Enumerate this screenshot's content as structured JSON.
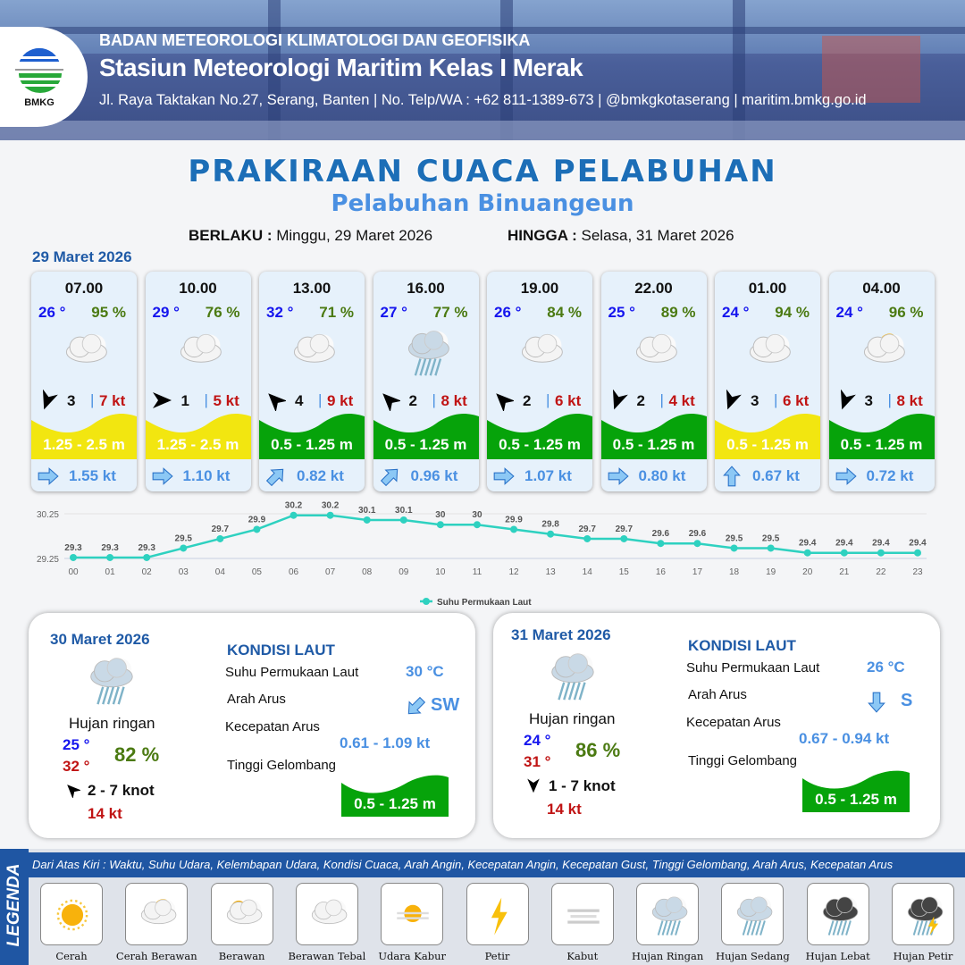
{
  "header": {
    "org": "BADAN METEOROLOGI KLIMATOLOGI DAN GEOFISIKA",
    "station": "Stasiun Meteorologi Maritim Kelas I Merak",
    "contact": "Jl. Raya Taktakan No.27, Serang, Banten | No. Telp/WA : +62 811-1389-673 | @bmkgkotaserang | maritim.bmkg.go.id",
    "logo_text": "BMKG"
  },
  "title": "PRAKIRAAN CUACA PELABUHAN",
  "subtitle": "Pelabuhan Binuangeun",
  "validity": {
    "from_label": "BERLAKU :",
    "from": "Minggu, 29 Maret 2026",
    "to_label": "HINGGA :",
    "to": "Selasa, 31 Maret 2026"
  },
  "day1": {
    "date": "29 Maret 2026",
    "slots": [
      {
        "time": "07.00",
        "temp": "26 °",
        "rh": "95 %",
        "icon": "berawan-tebal",
        "wind_dir_deg": 200,
        "wind": "3",
        "gust": "7 kt",
        "wave": "1.25 - 2.5 m",
        "wave_color": "#f2e610",
        "cur_dir_deg": 90,
        "current": "1.55 kt"
      },
      {
        "time": "10.00",
        "temp": "29 °",
        "rh": "76 %",
        "icon": "berawan-tebal",
        "wind_dir_deg": 90,
        "wind": "1",
        "gust": "5 kt",
        "wave": "1.25 - 2.5 m",
        "wave_color": "#f2e610",
        "cur_dir_deg": 90,
        "current": "1.10 kt"
      },
      {
        "time": "13.00",
        "temp": "32 °",
        "rh": "71 %",
        "icon": "berawan-tebal",
        "wind_dir_deg": 315,
        "wind": "4",
        "gust": "9 kt",
        "wave": "0.5 - 1.25 m",
        "wave_color": "#06a30a",
        "cur_dir_deg": 45,
        "current": "0.82 kt"
      },
      {
        "time": "16.00",
        "temp": "27 °",
        "rh": "77 %",
        "icon": "hujan-ringan",
        "wind_dir_deg": 315,
        "wind": "2",
        "gust": "8 kt",
        "wave": "0.5 - 1.25 m",
        "wave_color": "#06a30a",
        "cur_dir_deg": 45,
        "current": "0.96 kt"
      },
      {
        "time": "19.00",
        "temp": "26 °",
        "rh": "84 %",
        "icon": "berawan-tebal",
        "wind_dir_deg": 315,
        "wind": "2",
        "gust": "6 kt",
        "wave": "0.5 - 1.25 m",
        "wave_color": "#06a30a",
        "cur_dir_deg": 90,
        "current": "1.07 kt"
      },
      {
        "time": "22.00",
        "temp": "25 °",
        "rh": "89 %",
        "icon": "berawan-tebal",
        "wind_dir_deg": 200,
        "wind": "2",
        "gust": "4 kt",
        "wave": "0.5 - 1.25 m",
        "wave_color": "#06a30a",
        "cur_dir_deg": 90,
        "current": "0.80 kt"
      },
      {
        "time": "01.00",
        "temp": "24 °",
        "rh": "94 %",
        "icon": "berawan-tebal",
        "wind_dir_deg": 200,
        "wind": "3",
        "gust": "6 kt",
        "wave": "0.5 - 1.25 m",
        "wave_color": "#f2e610",
        "cur_dir_deg": 0,
        "current": "0.67 kt"
      },
      {
        "time": "04.00",
        "temp": "24 °",
        "rh": "96 %",
        "icon": "cerah-berawan",
        "wind_dir_deg": 200,
        "wind": "3",
        "gust": "8 kt",
        "wave": "0.5 - 1.25 m",
        "wave_color": "#06a30a",
        "cur_dir_deg": 90,
        "current": "0.72 kt"
      }
    ]
  },
  "chart_data": {
    "type": "line",
    "x": [
      "00",
      "01",
      "02",
      "03",
      "04",
      "05",
      "06",
      "07",
      "08",
      "09",
      "10",
      "11",
      "12",
      "13",
      "14",
      "15",
      "16",
      "17",
      "18",
      "19",
      "20",
      "21",
      "22",
      "23"
    ],
    "series": [
      {
        "name": "Suhu Permukaan Laut",
        "color": "#2ed1c0",
        "values": [
          29.3,
          29.3,
          29.3,
          29.5,
          29.7,
          29.9,
          30.2,
          30.2,
          30.1,
          30.1,
          30.0,
          30.0,
          29.9,
          29.8,
          29.7,
          29.7,
          29.6,
          29.6,
          29.5,
          29.5,
          29.4,
          29.4,
          29.4,
          29.4
        ]
      }
    ],
    "yticks": [
      "29.25",
      "30.25"
    ],
    "ylim": [
      29.25,
      30.25
    ],
    "legend": "bottom",
    "grid": true
  },
  "days": [
    {
      "date": "30 Maret 2026",
      "icon": "hujan-ringan",
      "condition": "Hujan ringan",
      "tmin": "25 °",
      "tmax": "32 °",
      "rh": "82 %",
      "wind_dir_deg": 315,
      "wind": "2  - 7 knot",
      "gust": "14 kt",
      "sea": {
        "title": "KONDISI LAUT",
        "sst_label": "Suhu Permukaan Laut",
        "sst": "30 °C",
        "dir_label": "Arah Arus",
        "dir": "SW",
        "cur_dir_deg": 225,
        "speed_label": "Kecepatan Arus",
        "speed": "0.61 - 1.09 kt",
        "wave_label": "Tinggi Gelombang",
        "wave": "0.5 - 1.25 m",
        "wave_color": "#06a30a"
      }
    },
    {
      "date": "31 Maret 2026",
      "icon": "hujan-ringan",
      "condition": "Hujan ringan",
      "tmin": "24 °",
      "tmax": "31 °",
      "rh": "86 %",
      "wind_dir_deg": 180,
      "wind": "1  - 7 knot",
      "gust": "14 kt",
      "sea": {
        "title": "KONDISI LAUT",
        "sst_label": "Suhu Permukaan Laut",
        "sst": "26 °C",
        "dir_label": "Arah Arus",
        "dir": "S",
        "cur_dir_deg": 180,
        "speed_label": "Kecepatan Arus",
        "speed": "0.67  - 0.94 kt",
        "wave_label": "Tinggi Gelombang",
        "wave": "0.5 - 1.25 m",
        "wave_color": "#06a30a"
      }
    }
  ],
  "legend": {
    "title": "LEGENDA",
    "description": "Dari Atas Kiri : Waktu, Suhu Udara, Kelembapan Udara, Kondisi Cuaca, Arah Angin, Kecepatan Angin, Kecepatan Gust, Tinggi Gelombang, Arah Arus, Kecepatan Arus",
    "items": [
      {
        "label": "Cerah",
        "icon": "cerah"
      },
      {
        "label": "Cerah Berawan",
        "icon": "cerah-berawan"
      },
      {
        "label": "Berawan",
        "icon": "berawan"
      },
      {
        "label": "Berawan Tebal",
        "icon": "berawan-tebal"
      },
      {
        "label": "Udara Kabur",
        "icon": "udara-kabur"
      },
      {
        "label": "Petir",
        "icon": "petir"
      },
      {
        "label": "Kabut",
        "icon": "kabut"
      },
      {
        "label": "Hujan Ringan",
        "icon": "hujan-ringan"
      },
      {
        "label": "Hujan Sedang",
        "icon": "hujan-sedang"
      },
      {
        "label": "Hujan Lebat",
        "icon": "hujan-lebat"
      },
      {
        "label": "Hujan Petir",
        "icon": "hujan-petir"
      }
    ]
  }
}
